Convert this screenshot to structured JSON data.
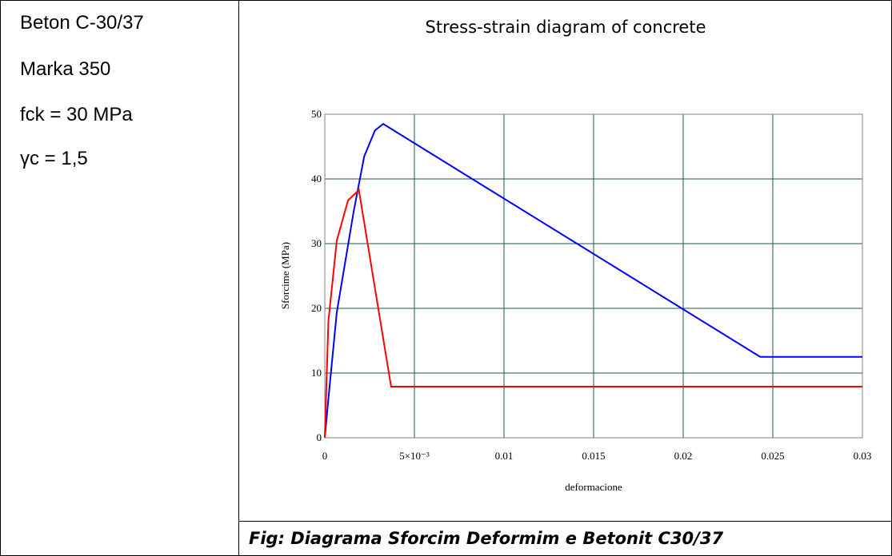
{
  "left": [
    "Beton C-30/37",
    "Marka 350",
    "fck = 30 MPa",
    "γc = 1,5"
  ],
  "caption": "Fig:  Diagrama Sforcim Deformim e Betonit C30/37",
  "chart_data": {
    "type": "line",
    "title": "Stress-strain diagram of concrete",
    "xlabel": "deformacione",
    "ylabel": "Sforcime (MPa)",
    "xlim": [
      0,
      0.03
    ],
    "ylim": [
      0,
      50
    ],
    "xticks": [
      0,
      {
        "value": 0.005,
        "label": "5×10⁻³"
      },
      0.01,
      0.015,
      0.02,
      0.025,
      0.03
    ],
    "yticks": [
      0,
      10,
      20,
      30,
      40,
      50
    ],
    "grid": true,
    "series": [
      {
        "color": "#0000ff",
        "x": [
          0,
          0.0002,
          0.00067,
          0.0016,
          0.0022,
          0.0028,
          0.00326,
          0.0243,
          0.03
        ],
        "values": [
          0,
          6,
          19.4,
          34.8,
          43.5,
          47.5,
          48.5,
          12.5,
          12.5
        ]
      },
      {
        "color": "#ff0000",
        "x": [
          0,
          0.0002,
          0.00067,
          0.0013,
          0.0019,
          0.0037,
          0.03
        ],
        "values": [
          0,
          18,
          30.5,
          36.7,
          38.3,
          7.9,
          7.9
        ]
      }
    ]
  }
}
